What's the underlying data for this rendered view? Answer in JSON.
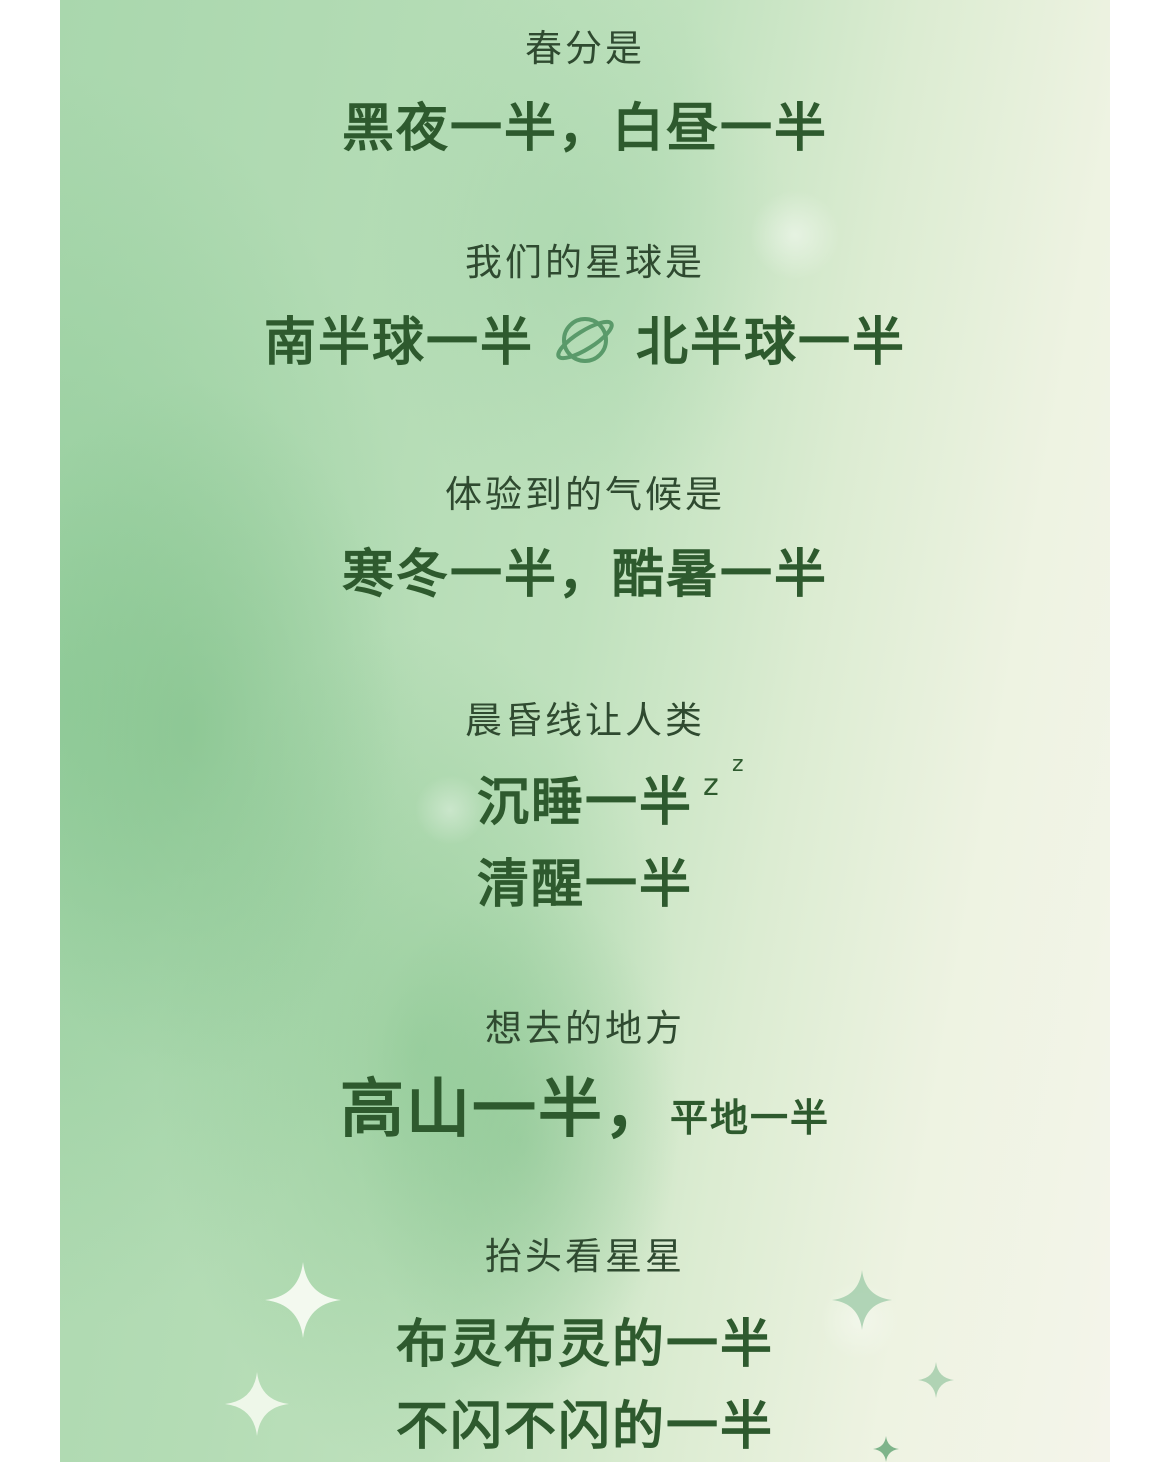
{
  "colors": {
    "text_dark": "#2f4a30",
    "text_green": "#2e5a2e",
    "accent_green": "#5a9a6a"
  },
  "poem": {
    "l1_sub": "春分是",
    "l1_big": "黑夜一半，白昼一半",
    "l2_sub": "我们的星球是",
    "l2_big_left": "南半球一半",
    "l2_icon": "planet-icon",
    "l2_big_right": "北半球一半",
    "l3_sub": "体验到的气候是",
    "l3_big": "寒冬一半，酷暑一半",
    "l4_sub": "晨昏线让人类",
    "l4_big_a": "沉睡一半",
    "l4_zz_1": "z",
    "l4_zz_2": "z",
    "l4_big_b": "清醒一半",
    "l5_sub": "想去的地方",
    "l5_big_a": "高山一半，",
    "l5_big_b": "平地一半",
    "l6_sub": "抬头看星星",
    "l6_big_a": "布灵布灵的一半",
    "l6_big_b": "不闪不闪的一半"
  }
}
